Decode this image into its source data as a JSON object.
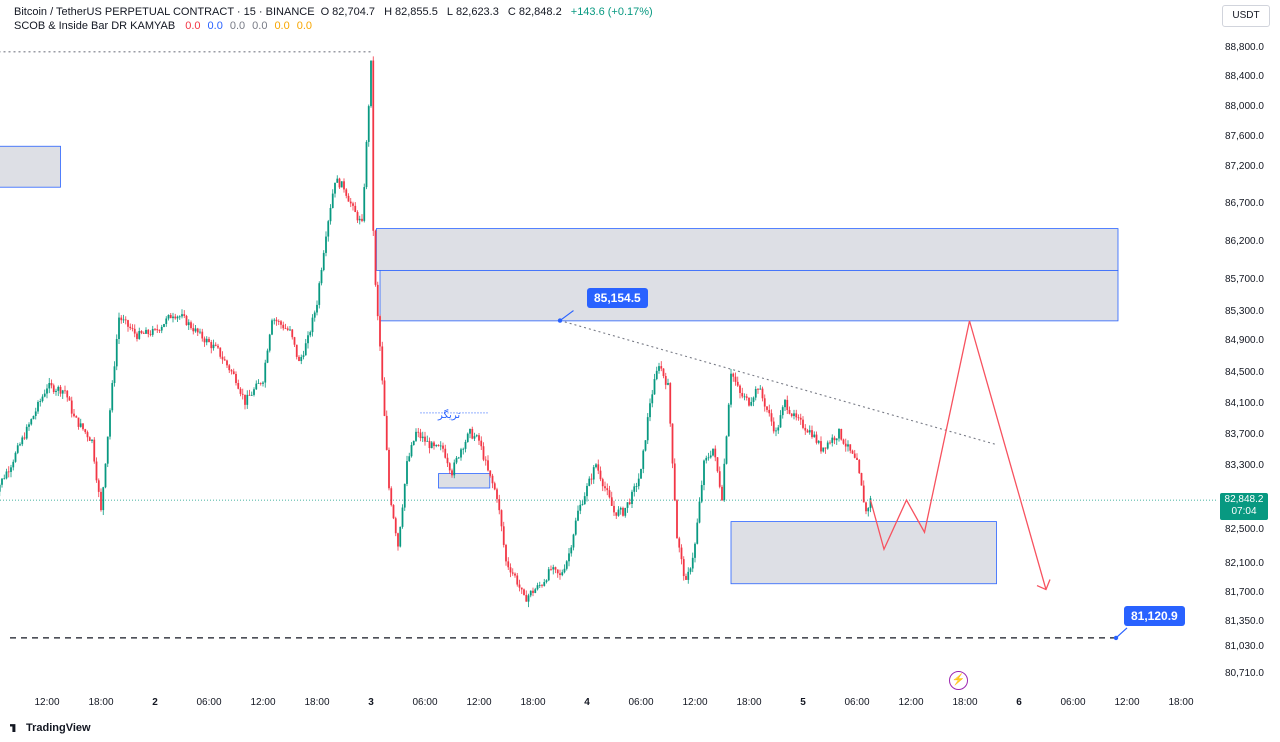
{
  "header": {
    "symbol": "Bitcoin / TetherUS PERPETUAL CONTRACT · 15 · BINANCE",
    "open_label": "O",
    "open": "82,704.7",
    "high_label": "H",
    "high": "82,855.5",
    "low_label": "L",
    "low": "82,623.3",
    "close_label": "C",
    "close": "82,848.2",
    "change": "+143.6 (+0.17%)",
    "indicator": "SCOB & Inside Bar DR KAMYAB",
    "indicator_values": [
      {
        "v": "0.0",
        "color": "#f23645"
      },
      {
        "v": "0.0",
        "color": "#2962ff"
      },
      {
        "v": "0.0",
        "color": "#787b86"
      },
      {
        "v": "0.0",
        "color": "#787b86"
      },
      {
        "v": "0.0",
        "color": "#f7a600"
      },
      {
        "v": "0.0",
        "color": "#f7a600"
      }
    ]
  },
  "currency": "USDT",
  "last_price": {
    "price": "82,848.2",
    "countdown": "07:04",
    "value": 82848.2,
    "color": "#089981"
  },
  "trigger_label": "تریگر",
  "watermark": "TradingView",
  "colors": {
    "up": "#089981",
    "down": "#f23645",
    "zone_fill": "#d1d4dc",
    "zone_border": "#2962ff",
    "projection": "#f7525f",
    "label_bg": "#2962ff"
  },
  "chart_data": {
    "type": "candlestick",
    "title": "Bitcoin / TetherUS PERPETUAL CONTRACT · 15 · BINANCE",
    "ylim": [
      80500,
      89100
    ],
    "y_ticks": [
      "88,800.0",
      "88,400.0",
      "88,000.0",
      "87,600.0",
      "87,200.0",
      "86,700.0",
      "86,200.0",
      "85,700.0",
      "85,300.0",
      "84,900.0",
      "84,500.0",
      "84,100.0",
      "83,700.0",
      "83,300.0",
      "82,500.0",
      "82,100.0",
      "81,700.0",
      "81,350.0",
      "81,030.0",
      "80,710.0"
    ],
    "y_tick_values": [
      88800,
      88400,
      88000,
      87600,
      87200,
      86700,
      86200,
      85700,
      85300,
      84900,
      84500,
      84100,
      83700,
      83300,
      82500,
      82100,
      81700,
      81350,
      81030,
      80710
    ],
    "x_ticks": [
      "12:00",
      "18:00",
      "2",
      "06:00",
      "12:00",
      "18:00",
      "3",
      "06:00",
      "12:00",
      "18:00",
      "4",
      "06:00",
      "12:00",
      "18:00",
      "5",
      "06:00",
      "12:00",
      "18:00",
      "6",
      "06:00",
      "12:00",
      "18:00"
    ],
    "x_tick_hours": [
      -12,
      -6,
      0,
      6,
      12,
      18,
      24,
      30,
      36,
      42,
      48,
      54,
      60,
      66,
      72,
      78,
      84,
      90,
      96,
      102,
      108,
      114
    ],
    "x_bold_ticks": [
      "2",
      "3",
      "4",
      "5",
      "6"
    ],
    "price_path": [
      [
        -18,
        82900
      ],
      [
        -16,
        83300
      ],
      [
        -14,
        83800
      ],
      [
        -12,
        84300
      ],
      [
        -10,
        84250
      ],
      [
        -9,
        83900
      ],
      [
        -7,
        83600
      ],
      [
        -6,
        82700
      ],
      [
        -5,
        84000
      ],
      [
        -4,
        85200
      ],
      [
        -2,
        84950
      ],
      [
        0,
        85000
      ],
      [
        2,
        85250
      ],
      [
        3,
        85200
      ],
      [
        5,
        84950
      ],
      [
        7,
        84750
      ],
      [
        9,
        84400
      ],
      [
        10,
        84100
      ],
      [
        12,
        84400
      ],
      [
        13,
        85200
      ],
      [
        15,
        85000
      ],
      [
        16,
        84600
      ],
      [
        17,
        84900
      ],
      [
        18,
        85400
      ],
      [
        19,
        86300
      ],
      [
        20,
        87000
      ],
      [
        21,
        86900
      ],
      [
        22,
        86600
      ],
      [
        23,
        86400
      ],
      [
        24,
        88550
      ],
      [
        24.3,
        85900
      ],
      [
        25,
        84800
      ],
      [
        26,
        83000
      ],
      [
        27,
        82300
      ],
      [
        28,
        83300
      ],
      [
        29,
        83700
      ],
      [
        30,
        83600
      ],
      [
        31,
        83500
      ],
      [
        32,
        83500
      ],
      [
        33,
        83200
      ],
      [
        34,
        83500
      ],
      [
        35,
        83700
      ],
      [
        36,
        83600
      ],
      [
        37,
        83200
      ],
      [
        38,
        82900
      ],
      [
        39,
        82100
      ],
      [
        40,
        81900
      ],
      [
        41,
        81600
      ],
      [
        42,
        81700
      ],
      [
        43,
        81800
      ],
      [
        44,
        82000
      ],
      [
        45,
        81900
      ],
      [
        46,
        82200
      ],
      [
        47,
        82700
      ],
      [
        48,
        83000
      ],
      [
        49,
        83300
      ],
      [
        50,
        83000
      ],
      [
        51,
        82700
      ],
      [
        52,
        82700
      ],
      [
        53,
        82900
      ],
      [
        54,
        83200
      ],
      [
        55,
        84100
      ],
      [
        56,
        84600
      ],
      [
        57,
        84300
      ],
      [
        58,
        82400
      ],
      [
        59,
        81800
      ],
      [
        60,
        82300
      ],
      [
        61,
        83300
      ],
      [
        62,
        83500
      ],
      [
        63,
        82900
      ],
      [
        64,
        84500
      ],
      [
        65,
        84200
      ],
      [
        66,
        84100
      ],
      [
        67,
        84300
      ],
      [
        68,
        84000
      ],
      [
        69,
        83700
      ],
      [
        70,
        84100
      ],
      [
        71,
        83900
      ],
      [
        72,
        83800
      ],
      [
        73,
        83700
      ],
      [
        74,
        83500
      ],
      [
        75,
        83600
      ],
      [
        76,
        83700
      ],
      [
        77,
        83500
      ],
      [
        78,
        83300
      ],
      [
        79,
        82700
      ],
      [
        79.5,
        82848.2
      ]
    ],
    "annotations": [
      {
        "type": "price_label",
        "text": "85,154.5",
        "value": 85154.5
      },
      {
        "type": "price_label",
        "text": "81,120.9",
        "value": 81120.9
      },
      {
        "type": "zone",
        "from": 86900,
        "to": 87450,
        "hours": [
          -18.5,
          -10.5
        ]
      },
      {
        "type": "zone",
        "from": 85800,
        "to": 86350,
        "hours": [
          24.6,
          107
        ]
      },
      {
        "type": "zone",
        "from": 85150,
        "to": 85800,
        "hours": [
          25,
          107
        ]
      },
      {
        "type": "zone",
        "from": 83000,
        "to": 83180,
        "hours": [
          31.5,
          37.2
        ]
      },
      {
        "type": "zone",
        "from": 81800,
        "to": 82580,
        "hours": [
          64,
          93.5
        ]
      },
      {
        "type": "level",
        "value": 88720,
        "style": "dotted",
        "hours": [
          -18.5,
          24
        ]
      },
      {
        "type": "level",
        "value": 81120.9,
        "style": "dashed"
      },
      {
        "type": "trendline",
        "points": [
          [
            45,
            85154.5
          ],
          [
            93.5,
            83550
          ]
        ]
      },
      {
        "type": "projection",
        "points": [
          [
            79.5,
            82850
          ],
          [
            81,
            82250
          ],
          [
            83.5,
            82850
          ],
          [
            85.5,
            82450
          ],
          [
            90.5,
            85150
          ],
          [
            99,
            81720
          ]
        ]
      }
    ]
  }
}
